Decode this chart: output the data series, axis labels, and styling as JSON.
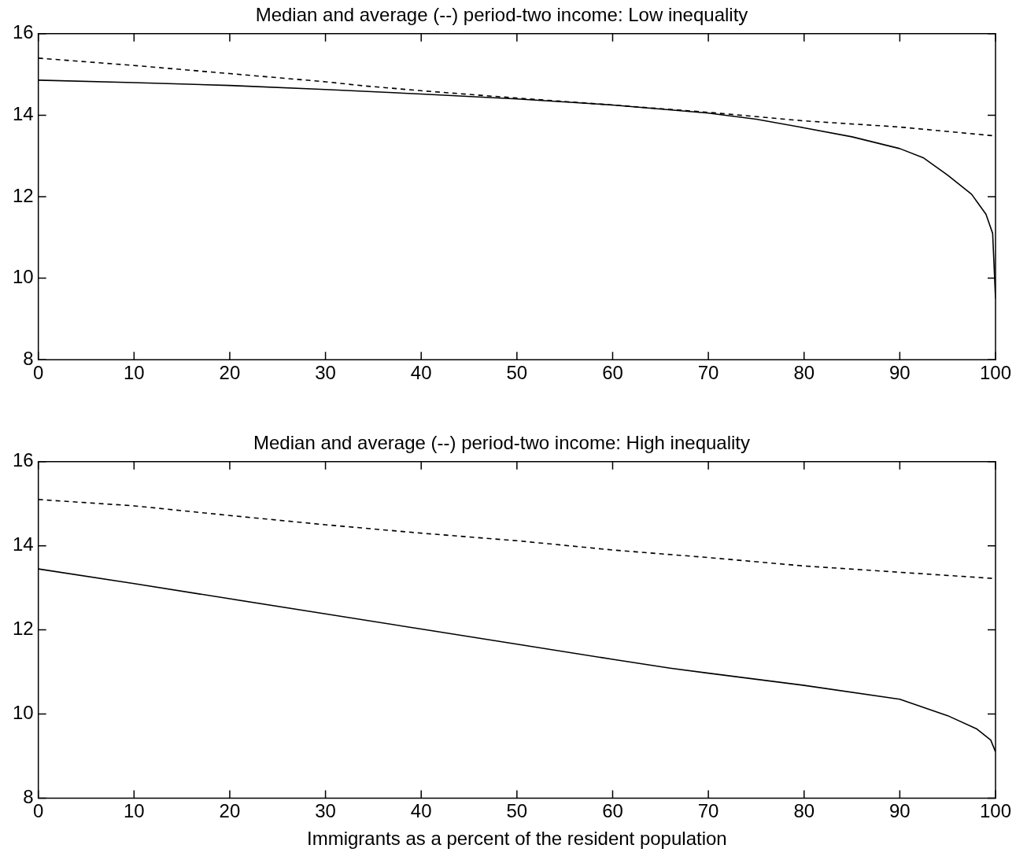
{
  "chart_data": [
    {
      "type": "line",
      "title": "Median and average (--) period-two income: Low inequality",
      "xlim": [
        0,
        100
      ],
      "xticks": [
        0,
        10,
        20,
        30,
        40,
        50,
        60,
        70,
        80,
        90,
        100
      ],
      "ylim": [
        8,
        16
      ],
      "yticks": [
        8,
        10,
        12,
        14,
        16
      ],
      "grid": false,
      "legend": false,
      "marker": "none",
      "series": [
        {
          "color": "#000000",
          "line_style": "solid",
          "x": [
            0,
            10,
            20,
            30,
            40,
            50,
            60,
            66.6,
            70,
            75,
            80,
            85,
            90,
            92.5,
            95,
            97.5,
            99,
            99.7,
            100
          ],
          "values": [
            14.86,
            14.8,
            14.73,
            14.63,
            14.52,
            14.4,
            14.25,
            14.12,
            14.05,
            13.9,
            13.69,
            13.47,
            13.18,
            12.95,
            12.53,
            12.06,
            11.57,
            11.1,
            9.5
          ]
        },
        {
          "color": "#000000",
          "line_style": "dashed",
          "x": [
            0,
            10,
            20,
            30,
            34,
            40,
            50,
            60,
            70,
            80,
            90,
            100
          ],
          "values": [
            15.4,
            15.22,
            15.02,
            14.82,
            14.72,
            14.6,
            14.42,
            14.25,
            14.07,
            13.86,
            13.71,
            13.49
          ]
        }
      ]
    },
    {
      "type": "line",
      "title": "Median and average (--) period-two income: High inequality",
      "xlabel": "Immigrants as a percent of the resident population",
      "xlim": [
        0,
        100
      ],
      "xticks": [
        0,
        10,
        20,
        30,
        40,
        50,
        60,
        70,
        80,
        90,
        100
      ],
      "ylim": [
        8,
        16
      ],
      "yticks": [
        8,
        10,
        12,
        14,
        16
      ],
      "grid": false,
      "legend": false,
      "marker": "none",
      "series": [
        {
          "color": "#000000",
          "line_style": "solid",
          "x": [
            0,
            10,
            20,
            30,
            40,
            50,
            60,
            66,
            70,
            80,
            90,
            95,
            98,
            99.5,
            100
          ],
          "values": [
            13.45,
            13.1,
            12.74,
            12.38,
            12.02,
            11.66,
            11.3,
            11.09,
            10.97,
            10.68,
            10.35,
            9.96,
            9.65,
            9.38,
            9.1
          ]
        },
        {
          "color": "#000000",
          "line_style": "dashed",
          "x": [
            0,
            10,
            20,
            30,
            40,
            50,
            60,
            70,
            80,
            90,
            100
          ],
          "values": [
            15.1,
            14.95,
            14.72,
            14.5,
            14.3,
            14.12,
            13.9,
            13.72,
            13.52,
            13.37,
            13.22
          ]
        }
      ]
    }
  ]
}
